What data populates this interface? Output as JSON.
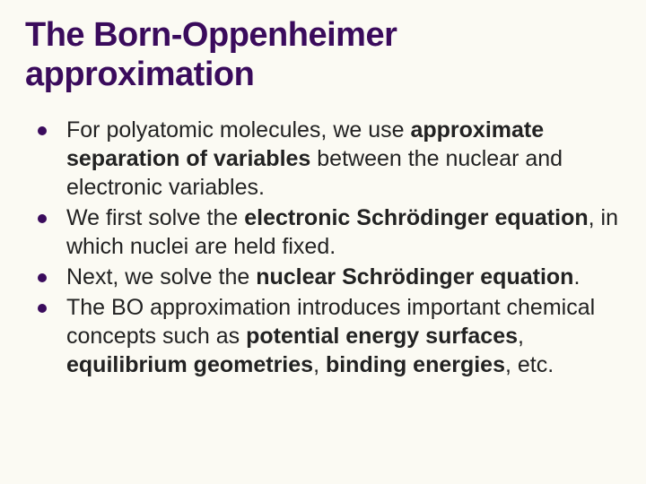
{
  "slide": {
    "title": "The Born-Oppenheimer approximation",
    "title_color": "#3a0b5c",
    "title_fontsize": 38,
    "background_color": "#fbfaf3",
    "body_color": "#222222",
    "body_fontsize": 25,
    "bullet_color": "#3a0b5c",
    "bullets": [
      {
        "runs": [
          {
            "t": "For polyatomic molecules, we use ",
            "b": false
          },
          {
            "t": "approximate separation of variables",
            "b": true
          },
          {
            "t": " between the nuclear and electronic variables.",
            "b": false
          }
        ]
      },
      {
        "runs": [
          {
            "t": "We first solve the ",
            "b": false
          },
          {
            "t": "electronic Schrödinger equation",
            "b": true
          },
          {
            "t": ", in which nuclei are held fixed.",
            "b": false
          }
        ]
      },
      {
        "runs": [
          {
            "t": "Next, we solve the ",
            "b": false
          },
          {
            "t": "nuclear Schrödinger equation",
            "b": true
          },
          {
            "t": ".",
            "b": false
          }
        ]
      },
      {
        "runs": [
          {
            "t": "The BO approximation introduces important chemical concepts such as ",
            "b": false
          },
          {
            "t": "potential energy surfaces",
            "b": true
          },
          {
            "t": ", ",
            "b": false
          },
          {
            "t": "equilibrium geometries",
            "b": true
          },
          {
            "t": ", ",
            "b": false
          },
          {
            "t": "binding energies",
            "b": true
          },
          {
            "t": ", etc.",
            "b": false
          }
        ]
      }
    ]
  }
}
